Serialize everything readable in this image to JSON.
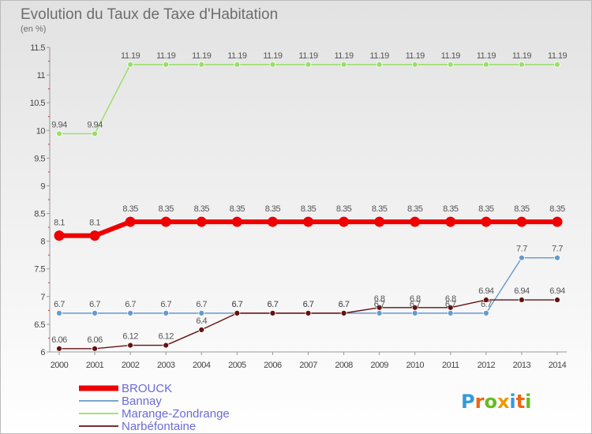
{
  "chart_data": {
    "type": "line",
    "title": "Evolution du Taux de Taxe d'Habitation",
    "subtitle": "(en %)",
    "xlabel": "",
    "ylabel": "",
    "ylim": [
      6,
      11.5
    ],
    "yticks": [
      6,
      6.5,
      7,
      7.5,
      8,
      8.5,
      9,
      9.5,
      10,
      10.5,
      11,
      11.5
    ],
    "ytick_labels": [
      "6",
      "6.5",
      "7",
      "7.5",
      "8",
      "8.5",
      "9",
      "9.5",
      "10",
      "10.5",
      "11",
      "11.5"
    ],
    "categories": [
      "2000",
      "2001",
      "2002",
      "2003",
      "2004",
      "2005",
      "2006",
      "2007",
      "2008",
      "2009",
      "2010",
      "2011",
      "2012",
      "2013",
      "2014"
    ],
    "grid": false,
    "legend_position": "bottom-left",
    "series": [
      {
        "name": "Marange-Zondrange",
        "color": "#99dd66",
        "values": [
          9.94,
          9.94,
          11.19,
          11.19,
          11.19,
          11.19,
          11.19,
          11.19,
          11.19,
          11.19,
          11.19,
          11.19,
          11.19,
          11.19,
          11.19
        ],
        "labels": [
          "9.94",
          "9.94",
          "11.19",
          "11.19",
          "11.19",
          "11.19",
          "11.19",
          "11.19",
          "11.19",
          "11.19",
          "11.19",
          "11.19",
          "11.19",
          "11.19",
          "11.19"
        ]
      },
      {
        "name": "BROUCK",
        "color": "#ee0000",
        "values": [
          8.1,
          8.1,
          8.35,
          8.35,
          8.35,
          8.35,
          8.35,
          8.35,
          8.35,
          8.35,
          8.35,
          8.35,
          8.35,
          8.35,
          8.35
        ],
        "labels": [
          "8.1",
          "8.1",
          "8.35",
          "8.35",
          "8.35",
          "8.35",
          "8.35",
          "8.35",
          "8.35",
          "8.35",
          "8.35",
          "8.35",
          "8.35",
          "8.35",
          "8.35"
        ]
      },
      {
        "name": "Bannay",
        "color": "#6699cc",
        "values": [
          6.7,
          6.7,
          6.7,
          6.7,
          6.7,
          6.7,
          6.7,
          6.7,
          6.7,
          6.7,
          6.7,
          6.7,
          6.7,
          7.7,
          7.7
        ],
        "labels": [
          "6.7",
          "6.7",
          "6.7",
          "6.7",
          "6.7",
          "6.7",
          "6.7",
          "6.7",
          "6.7",
          "6.7",
          "6.7",
          "6.7",
          "6.7",
          "7.7",
          "7.7"
        ]
      },
      {
        "name": "Narbéfontaine",
        "color": "#661111",
        "values": [
          6.06,
          6.06,
          6.12,
          6.12,
          6.4,
          6.7,
          6.7,
          6.7,
          6.7,
          6.8,
          6.8,
          6.8,
          6.94,
          6.94,
          6.94
        ],
        "labels": [
          "6.06",
          "6.06",
          "6.12",
          "6.12",
          "6.4",
          "6.7",
          "6.7",
          "6.7",
          "6.7",
          "6.8",
          "6.8",
          "6.8",
          "6.94",
          "6.94",
          "6.94"
        ]
      }
    ],
    "legend": [
      "BROUCK",
      "Bannay",
      "Marange-Zondrange",
      "Narbéfontaine"
    ]
  },
  "logo": {
    "text": "Proxiti",
    "letters": [
      "P",
      "r",
      "o",
      "x",
      "i",
      "t",
      "i"
    ],
    "colors": [
      "#3399dd",
      "#ee6611",
      "#66bb22",
      "#ee9900",
      "#3399dd",
      "#ee6611",
      "#66bb22"
    ]
  }
}
